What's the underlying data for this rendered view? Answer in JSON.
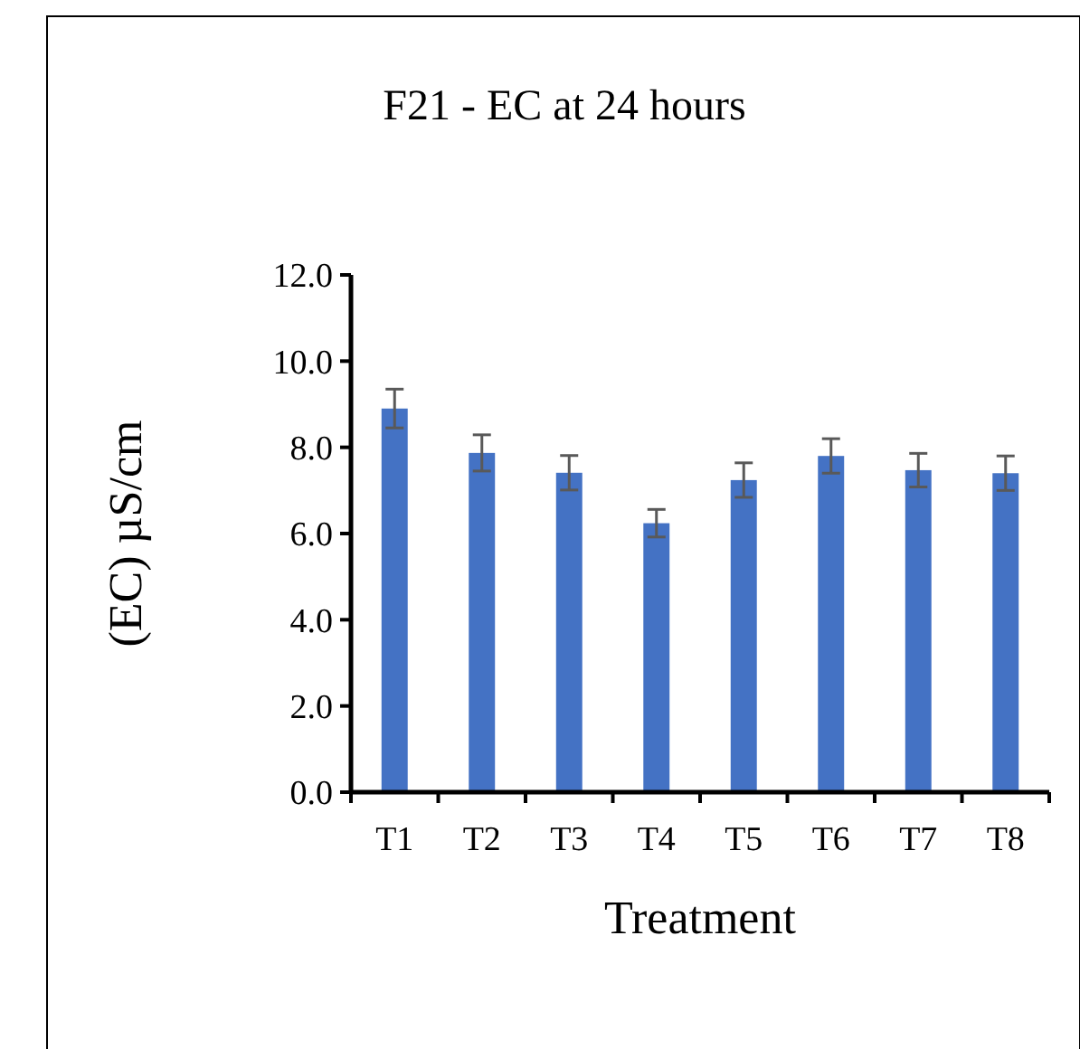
{
  "chart_data": {
    "type": "bar",
    "title": "F21 - EC at 24 hours",
    "xlabel": "Treatment",
    "ylabel": "(EC) µS/cm",
    "categories": [
      "T1",
      "T2",
      "T3",
      "T4",
      "T5",
      "T6",
      "T7",
      "T8"
    ],
    "values": [
      8.9,
      7.87,
      7.41,
      6.24,
      7.24,
      7.8,
      7.47,
      7.4
    ],
    "errors": [
      0.45,
      0.42,
      0.4,
      0.32,
      0.4,
      0.4,
      0.39,
      0.4
    ],
    "color": "#4472c4",
    "ylim": [
      0,
      12
    ],
    "yticks": [
      {
        "value": 0,
        "label": "0.0"
      },
      {
        "value": 2,
        "label": "2.0"
      },
      {
        "value": 4,
        "label": "4.0"
      },
      {
        "value": 6,
        "label": "6.0"
      },
      {
        "value": 8,
        "label": "8.0"
      },
      {
        "value": 10,
        "label": "10.0"
      },
      {
        "value": 12,
        "label": "12.0"
      }
    ],
    "grid": false
  }
}
